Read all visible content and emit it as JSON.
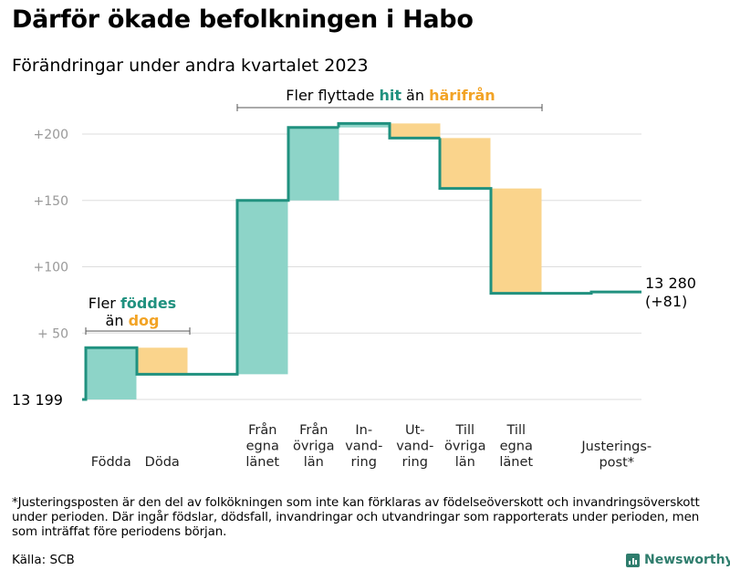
{
  "title": "Därför ökade befolkningen i Habo",
  "subtitle": "Förändringar under andra kvartalet 2023",
  "chart_data": {
    "type": "waterfall",
    "base_label": "13  199",
    "end_label": [
      "13 280",
      "(+81)"
    ],
    "ylim": [
      0,
      200
    ],
    "y_ticks": [
      {
        "value": 200,
        "label": "+200"
      },
      {
        "value": 150,
        "label": "+150"
      },
      {
        "value": 100,
        "label": "+100"
      },
      {
        "value": 50,
        "label": "+  50"
      }
    ],
    "steps": [
      {
        "label": [
          "Födda"
        ],
        "from": 0,
        "to": 39,
        "kind": "in"
      },
      {
        "label": [
          "Döda"
        ],
        "from": 39,
        "to": 19,
        "kind": "out"
      },
      {
        "label": [
          "Från",
          "egna",
          "länet"
        ],
        "from": 19,
        "to": 150,
        "kind": "in"
      },
      {
        "label": [
          "Från",
          "övriga",
          "län"
        ],
        "from": 150,
        "to": 205,
        "kind": "in"
      },
      {
        "label": [
          "In-",
          "vand-",
          "ring"
        ],
        "from": 205,
        "to": 208,
        "kind": "in"
      },
      {
        "label": [
          "Ut-",
          "vand-",
          "ring"
        ],
        "from": 208,
        "to": 197,
        "kind": "out"
      },
      {
        "label": [
          "Till",
          "övriga",
          "län"
        ],
        "from": 197,
        "to": 159,
        "kind": "out"
      },
      {
        "label": [
          "Till",
          "egna",
          "länet"
        ],
        "from": 159,
        "to": 80,
        "kind": "out"
      },
      {
        "label": [
          "Justerings-",
          "post*"
        ],
        "from": 80,
        "to": 81,
        "kind": "adjust"
      }
    ],
    "colors": {
      "in": "#8dd4c8",
      "out": "#fad48c",
      "line": "#20917f",
      "accent_in": "#20917f",
      "accent_out": "#f2a325",
      "grid": "#dddddd",
      "axis_text": "#999999"
    },
    "annotations": {
      "births": {
        "line1": "Fler ",
        "line1_hl": "föddes",
        "line2": "än ",
        "line2_hl": "dog"
      },
      "migration": {
        "text": "Fler flyttade ",
        "hl1": "hit",
        "mid": " än ",
        "hl2": "härifrån"
      }
    }
  },
  "footnote": "*Justeringsposten är den del av folkökningen som inte kan förklaras av födelseöverskott och invandringsöverskott under perioden. Där ingår födslar, dödsfall, invandringar och utvandringar som rapporterats under perioden, men som inträffat före periodens början.",
  "source": "Källa: SCB",
  "logo": "Newsworthy"
}
